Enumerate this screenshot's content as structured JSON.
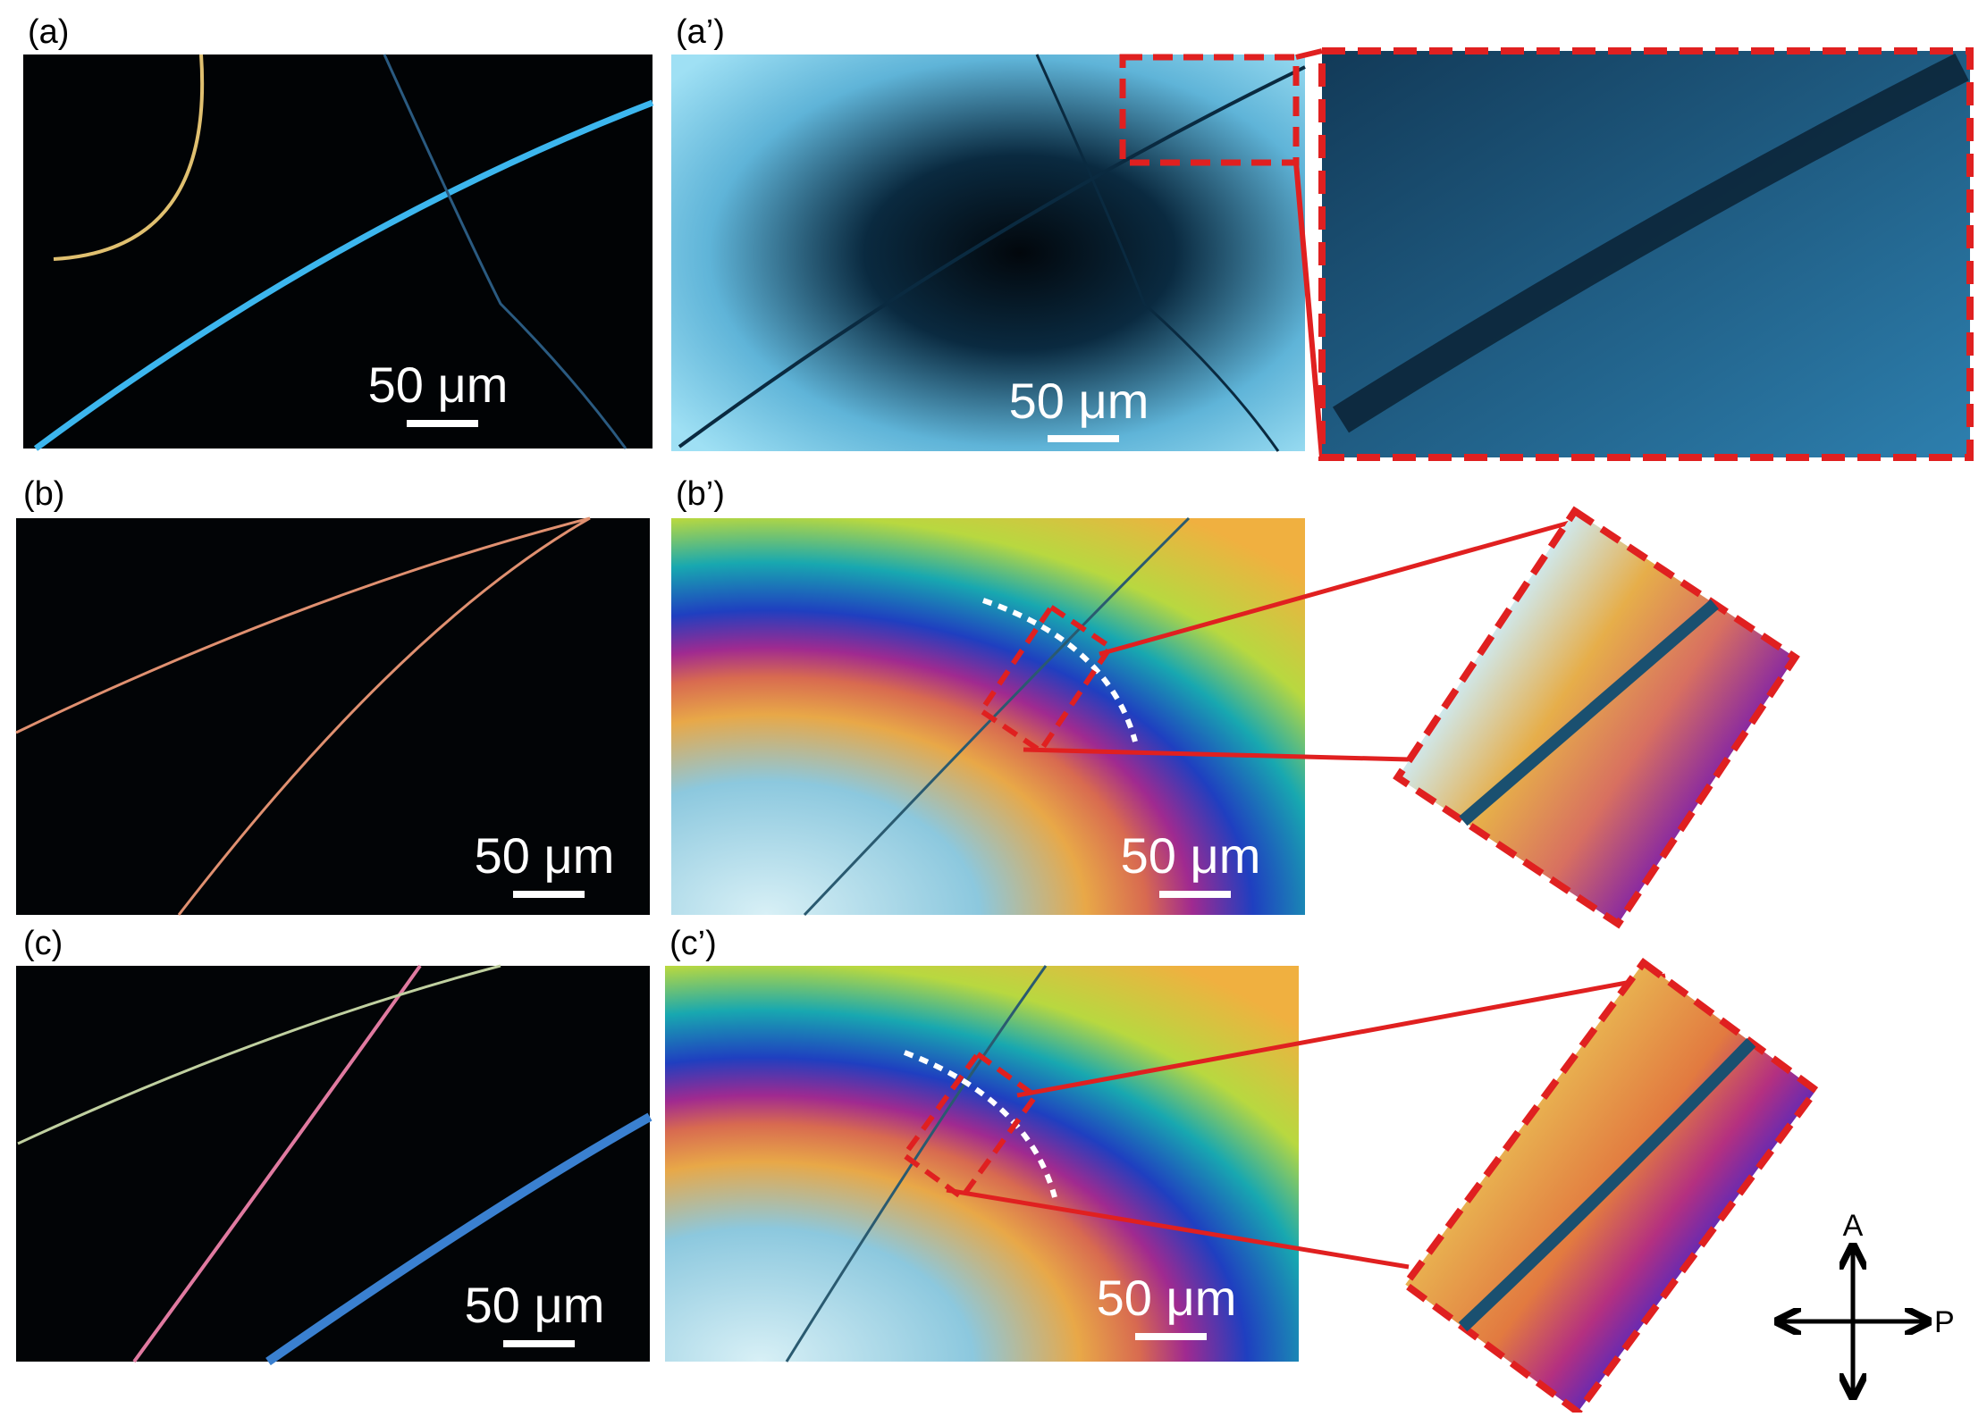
{
  "panels": [
    {
      "label": "(a)",
      "scale_bar": "50 μm"
    },
    {
      "label": "(a’)",
      "scale_bar": "50 μm"
    },
    {
      "label": "(b)",
      "scale_bar": "50 μm"
    },
    {
      "label": "(b’)",
      "scale_bar": "50 μm"
    },
    {
      "label": "(c)",
      "scale_bar": "50 μm"
    },
    {
      "label": "(c’)",
      "scale_bar": "50 μm"
    }
  ],
  "polarizers": {
    "analyzer": "A",
    "polarizer": "P"
  }
}
